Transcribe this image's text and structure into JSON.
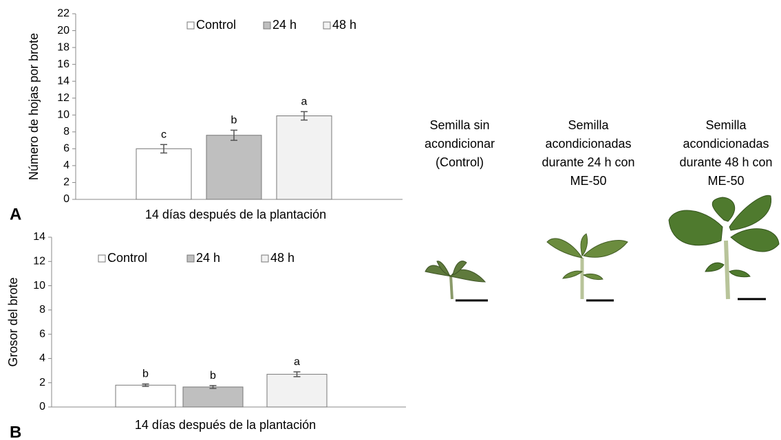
{
  "chart_data": [
    {
      "type": "bar",
      "label": "A",
      "ylabel": "Número de hojas por brote",
      "categories": [
        "14 días después de la plantación"
      ],
      "ylim": [
        0,
        22
      ],
      "yticks": [
        0,
        2,
        4,
        6,
        8,
        10,
        12,
        14,
        16,
        18,
        20,
        22
      ],
      "grid": false,
      "series": [
        {
          "name": "Control",
          "color": "#ffffff",
          "values": [
            6.0
          ],
          "errors": [
            0.5
          ],
          "letters": [
            "c"
          ]
        },
        {
          "name": "24 h",
          "color": "#bfbfbf",
          "values": [
            7.6
          ],
          "errors": [
            0.6
          ],
          "letters": [
            "b"
          ]
        },
        {
          "name": "48 h",
          "color": "#f2f2f2",
          "values": [
            9.9
          ],
          "errors": [
            0.5
          ],
          "letters": [
            "a"
          ]
        }
      ]
    },
    {
      "type": "bar",
      "label": "B",
      "ylabel": "Grosor del brote",
      "categories": [
        "14 días después de la plantación"
      ],
      "ylim": [
        0,
        14
      ],
      "yticks": [
        0,
        2,
        4,
        6,
        8,
        10,
        12,
        14
      ],
      "grid": false,
      "series": [
        {
          "name": "Control",
          "color": "#ffffff",
          "values": [
            1.8
          ],
          "errors": [
            0.1
          ],
          "letters": [
            "b"
          ]
        },
        {
          "name": "24 h",
          "color": "#bfbfbf",
          "values": [
            1.65
          ],
          "errors": [
            0.12
          ],
          "letters": [
            "b"
          ]
        },
        {
          "name": "48 h",
          "color": "#f2f2f2",
          "values": [
            2.7
          ],
          "errors": [
            0.2
          ],
          "letters": [
            "a"
          ]
        }
      ]
    }
  ],
  "photo_captions": [
    [
      "Semilla sin",
      "acondicionar",
      "(Control)"
    ],
    [
      "Semilla",
      "acondicionadas",
      "durante 24 h con",
      "ME-50"
    ],
    [
      "Semilla",
      "acondicionadas",
      "durante 48 h con",
      "ME-50"
    ]
  ]
}
